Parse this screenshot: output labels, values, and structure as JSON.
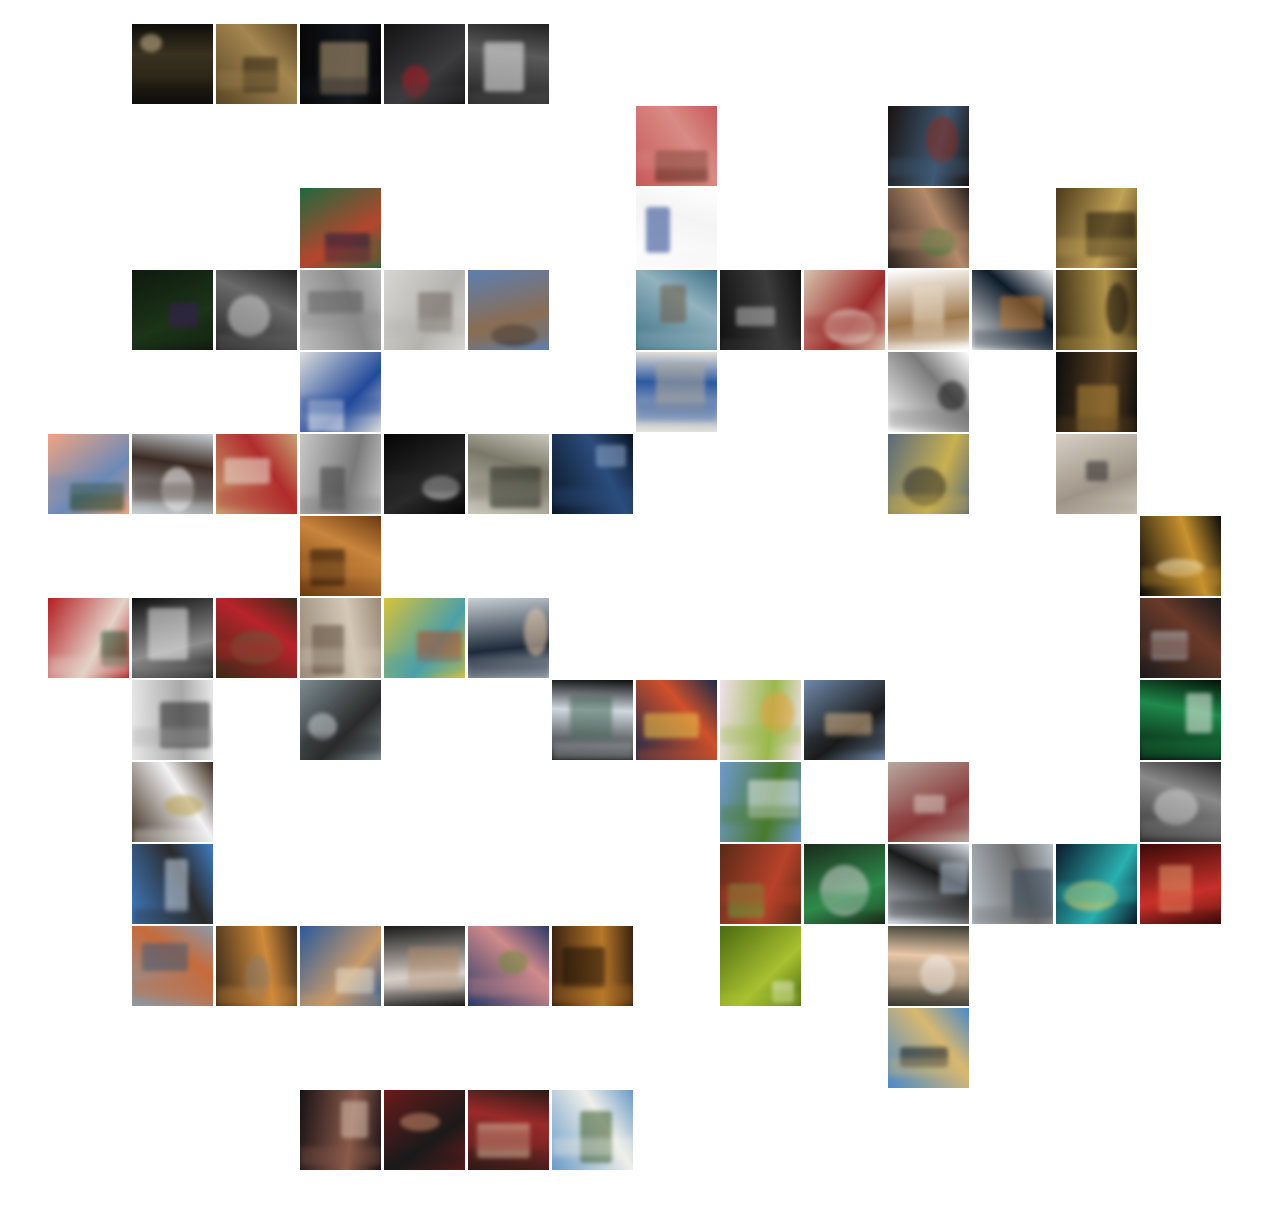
{
  "collage": {
    "grid": {
      "columns": 14,
      "rows": 14
    },
    "tiles": [
      {
        "id": "cave-lights",
        "col": 1,
        "row": 0,
        "colors": [
          "#0e0d0a",
          "#3b3220",
          "#c8b890"
        ]
      },
      {
        "id": "cave-interior",
        "col": 2,
        "row": 0,
        "colors": [
          "#5a4524",
          "#a38650",
          "#2c2212"
        ]
      },
      {
        "id": "dark-stage",
        "col": 3,
        "row": 0,
        "colors": [
          "#060607",
          "#17181f",
          "#b9a27a"
        ]
      },
      {
        "id": "car-wheel",
        "col": 4,
        "row": 0,
        "colors": [
          "#121212",
          "#3c3c3f",
          "#b01a22"
        ]
      },
      {
        "id": "white-sports-car",
        "col": 5,
        "row": 0,
        "colors": [
          "#202020",
          "#5a5a5a",
          "#efefef"
        ]
      },
      {
        "id": "red-door",
        "col": 7,
        "row": 1,
        "colors": [
          "#c65a5a",
          "#d98b85",
          "#5b2a1b"
        ]
      },
      {
        "id": "person-jeans",
        "col": 10,
        "row": 1,
        "colors": [
          "#1a1312",
          "#3e5a74",
          "#8a2a1e"
        ]
      },
      {
        "id": "painted-faces",
        "col": 3,
        "row": 2,
        "colors": [
          "#1f6a3e",
          "#b4462e",
          "#1c1a3e"
        ]
      },
      {
        "id": "white-screen",
        "col": 7,
        "row": 2,
        "colors": [
          "#ffffff",
          "#f4f4f4",
          "#1d3e8b"
        ]
      },
      {
        "id": "group-friends",
        "col": 10,
        "row": 2,
        "colors": [
          "#2a2220",
          "#b48a6a",
          "#3f7a3a"
        ]
      },
      {
        "id": "bottle-shelves",
        "col": 12,
        "row": 2,
        "colors": [
          "#4b3a1c",
          "#c2a257",
          "#1b1408"
        ]
      },
      {
        "id": "purple-flowers",
        "col": 1,
        "row": 3,
        "colors": [
          "#0e1a0e",
          "#1c3418",
          "#3a1c5a"
        ]
      },
      {
        "id": "bw-flowers",
        "col": 2,
        "row": 3,
        "colors": [
          "#222222",
          "#6a6a6a",
          "#cfcfcf"
        ]
      },
      {
        "id": "thatched-huts",
        "col": 3,
        "row": 3,
        "colors": [
          "#bdbdbd",
          "#8a8a8a",
          "#5e5e5e"
        ]
      },
      {
        "id": "foggy-pier",
        "col": 4,
        "row": 3,
        "colors": [
          "#d6d6d4",
          "#b5b3ae",
          "#6e675e"
        ]
      },
      {
        "id": "stone-window",
        "col": 5,
        "row": 3,
        "colors": [
          "#5c7fb0",
          "#8a6d52",
          "#2b2019"
        ]
      },
      {
        "id": "fisheye-sea",
        "col": 7,
        "row": 3,
        "colors": [
          "#3d6f84",
          "#92b3bf",
          "#6e5a44"
        ]
      },
      {
        "id": "speaker-dials",
        "col": 8,
        "row": 3,
        "colors": [
          "#101010",
          "#3c3c3c",
          "#b8b8b8"
        ]
      },
      {
        "id": "two-men",
        "col": 9,
        "row": 3,
        "colors": [
          "#d6c4ae",
          "#9e2a2a",
          "#e3d9cc"
        ]
      },
      {
        "id": "dog-sketch",
        "col": 10,
        "row": 3,
        "colors": [
          "#ffffff",
          "#a07a4e",
          "#e9dcc8"
        ]
      },
      {
        "id": "framed-night",
        "col": 11,
        "row": 3,
        "colors": [
          "#f3f3f3",
          "#0d1b2a",
          "#c47a2e"
        ]
      },
      {
        "id": "bottle-shelves-2",
        "col": 12,
        "row": 3,
        "colors": [
          "#3b2e16",
          "#b09349",
          "#15100a"
        ]
      },
      {
        "id": "quick-sign",
        "col": 3,
        "row": 4,
        "colors": [
          "#dcdcdc",
          "#224a9a",
          "#f5f5f5"
        ]
      },
      {
        "id": "van-lettering",
        "col": 7,
        "row": 4,
        "colors": [
          "#e8e4da",
          "#2d59a0",
          "#b0a99c"
        ]
      },
      {
        "id": "old-man-drawing",
        "col": 10,
        "row": 4,
        "colors": [
          "#ffffff",
          "#7a7a7a",
          "#1a1a1a"
        ]
      },
      {
        "id": "night-street",
        "col": 12,
        "row": 4,
        "colors": [
          "#0d0d0d",
          "#5a4020",
          "#b48a3a"
        ]
      },
      {
        "id": "sunset-tree",
        "col": 0,
        "row": 5,
        "colors": [
          "#f0a482",
          "#6a8ab8",
          "#27421a"
        ]
      },
      {
        "id": "woman-car",
        "col": 1,
        "row": 5,
        "colors": [
          "#c9d1d6",
          "#3a2a22",
          "#f2f2f2"
        ]
      },
      {
        "id": "girl-red-hat",
        "col": 2,
        "row": 5,
        "colors": [
          "#c7a272",
          "#b12c2c",
          "#eee6d8"
        ]
      },
      {
        "id": "old-village",
        "col": 3,
        "row": 5,
        "colors": [
          "#c8c8c8",
          "#7a7a7a",
          "#404040"
        ]
      },
      {
        "id": "dark-tunnel",
        "col": 4,
        "row": 5,
        "colors": [
          "#050505",
          "#2a2a2a",
          "#d8d8d8"
        ]
      },
      {
        "id": "old-photo-field",
        "col": 5,
        "row": 5,
        "colors": [
          "#cac8bc",
          "#7a7868",
          "#2a2a24"
        ]
      },
      {
        "id": "blue-glass",
        "col": 6,
        "row": 5,
        "colors": [
          "#0a1524",
          "#2b4d7e",
          "#8fa7c8"
        ]
      },
      {
        "id": "street-kids",
        "col": 10,
        "row": 5,
        "colors": [
          "#5a6a7a",
          "#c8b050",
          "#2b2b2b"
        ]
      },
      {
        "id": "hand-bird",
        "col": 12,
        "row": 5,
        "colors": [
          "#d8d0c4",
          "#9e9488",
          "#2a2a2a"
        ]
      },
      {
        "id": "wooden-tunnel",
        "col": 3,
        "row": 6,
        "colors": [
          "#6a3a12",
          "#c9853c",
          "#281404"
        ]
      },
      {
        "id": "guitar",
        "col": 13,
        "row": 6,
        "colors": [
          "#0a0a0a",
          "#c8922e",
          "#f2e4bc"
        ]
      },
      {
        "id": "red-packages",
        "col": 0,
        "row": 7,
        "colors": [
          "#b41e22",
          "#e4d2c8",
          "#2a4a2a"
        ]
      },
      {
        "id": "bw-couple",
        "col": 1,
        "row": 7,
        "colors": [
          "#0e0e0e",
          "#8e8e8e",
          "#eaeaea"
        ]
      },
      {
        "id": "stuffed-toy",
        "col": 2,
        "row": 7,
        "colors": [
          "#3a2a18",
          "#b8242a",
          "#6a5a3a"
        ]
      },
      {
        "id": "ruins",
        "col": 3,
        "row": 7,
        "colors": [
          "#9a8a78",
          "#d4c8b6",
          "#5a4a3a"
        ]
      },
      {
        "id": "colorful-boxes",
        "col": 4,
        "row": 7,
        "colors": [
          "#d8c23a",
          "#4aa0a8",
          "#b04a2a"
        ]
      },
      {
        "id": "man-portrait",
        "col": 5,
        "row": 7,
        "colors": [
          "#c8d0d6",
          "#1e2a3a",
          "#e8c8a8"
        ]
      },
      {
        "id": "band-player",
        "col": 13,
        "row": 7,
        "colors": [
          "#1a1a1a",
          "#6a3a2a",
          "#b8b8c0"
        ]
      },
      {
        "id": "street-sign",
        "col": 1,
        "row": 8,
        "colors": [
          "#e8e8e8",
          "#a8a8a8",
          "#222222"
        ]
      },
      {
        "id": "boat-water",
        "col": 3,
        "row": 8,
        "colors": [
          "#7c8c92",
          "#2a2a2a",
          "#c8d0d2"
        ]
      },
      {
        "id": "lattice-glass",
        "col": 6,
        "row": 8,
        "colors": [
          "#0e0e0e",
          "#cfd8e0",
          "#4a6a5a"
        ]
      },
      {
        "id": "times-square",
        "col": 7,
        "row": 8,
        "colors": [
          "#1a2a4a",
          "#d0502a",
          "#e8c84a"
        ]
      },
      {
        "id": "bento-box",
        "col": 8,
        "row": 8,
        "colors": [
          "#f0e0ea",
          "#9ab84a",
          "#e8a040"
        ]
      },
      {
        "id": "bridge-dusk",
        "col": 9,
        "row": 8,
        "colors": [
          "#6f89ab",
          "#1a1a1a",
          "#d8b68a"
        ]
      },
      {
        "id": "green-cups",
        "col": 13,
        "row": 8,
        "colors": [
          "#041208",
          "#1e8a4a",
          "#e8f0e8"
        ]
      },
      {
        "id": "note-candles",
        "col": 1,
        "row": 9,
        "colors": [
          "#3a2a1a",
          "#f2f2f4",
          "#b8a048"
        ]
      },
      {
        "id": "waterfall-hill",
        "col": 8,
        "row": 9,
        "colors": [
          "#6e9ad0",
          "#4a7a2a",
          "#e8eef2"
        ]
      },
      {
        "id": "pebbles",
        "col": 10,
        "row": 9,
        "colors": [
          "#b8a8a0",
          "#8a3a3a",
          "#dcd2c8"
        ]
      },
      {
        "id": "concert-crowd",
        "col": 13,
        "row": 9,
        "colors": [
          "#2a2a2a",
          "#8a8a8a",
          "#d0d0d0"
        ]
      },
      {
        "id": "tower-block",
        "col": 1,
        "row": 10,
        "colors": [
          "#3f7cc4",
          "#2a2a2a",
          "#c8d8ea"
        ]
      },
      {
        "id": "bento-food",
        "col": 8,
        "row": 10,
        "colors": [
          "#5a2a18",
          "#b8422a",
          "#6aa03a"
        ]
      },
      {
        "id": "doorway-man",
        "col": 9,
        "row": 10,
        "colors": [
          "#1a2a1a",
          "#2e8a4a",
          "#d0d0d0"
        ]
      },
      {
        "id": "seagull-sky",
        "col": 10,
        "row": 10,
        "colors": [
          "#d6dee6",
          "#1a1a1a",
          "#a8b8c8"
        ]
      },
      {
        "id": "harbor-city",
        "col": 11,
        "row": 10,
        "colors": [
          "#b8c2ca",
          "#6a6a6a",
          "#3a4a5a"
        ]
      },
      {
        "id": "comic-panels",
        "col": 12,
        "row": 10,
        "colors": [
          "#0a1a2a",
          "#2ab0b0",
          "#e8d060"
        ]
      },
      {
        "id": "red-dancers",
        "col": 13,
        "row": 10,
        "colors": [
          "#3a0a08",
          "#c8302a",
          "#e89a6a"
        ]
      },
      {
        "id": "graffiti-wall",
        "col": 1,
        "row": 11,
        "colors": [
          "#8a9aa8",
          "#c86a3a",
          "#3a5a7a"
        ]
      },
      {
        "id": "stormy-church",
        "col": 2,
        "row": 11,
        "colors": [
          "#3a2a1a",
          "#d08a3a",
          "#8a7a6a"
        ]
      },
      {
        "id": "coastal-town",
        "col": 3,
        "row": 11,
        "colors": [
          "#2a5a9a",
          "#c89a6a",
          "#e8e0d0"
        ]
      },
      {
        "id": "old-woman",
        "col": 4,
        "row": 11,
        "colors": [
          "#1a1a1a",
          "#d8d0c8",
          "#b08a6a"
        ]
      },
      {
        "id": "flower-field",
        "col": 5,
        "row": 11,
        "colors": [
          "#2a3a6a",
          "#d08a8a",
          "#6a8a3a"
        ]
      },
      {
        "id": "old-alley",
        "col": 6,
        "row": 11,
        "colors": [
          "#3a2210",
          "#b8782a",
          "#1a0e06"
        ]
      },
      {
        "id": "dew-drop",
        "col": 8,
        "row": 11,
        "colors": [
          "#4a6a10",
          "#a8c030",
          "#e8f0c8"
        ]
      },
      {
        "id": "father-baby",
        "col": 10,
        "row": 11,
        "colors": [
          "#3a3a30",
          "#e8c8a8",
          "#f2f2f2"
        ]
      },
      {
        "id": "city-skyline",
        "col": 10,
        "row": 12,
        "colors": [
          "#4a8ac8",
          "#d8b870",
          "#0e1a2a"
        ]
      },
      {
        "id": "party-crowd",
        "col": 3,
        "row": 13,
        "colors": [
          "#1a1216",
          "#8a5a4a",
          "#d8c0b0"
        ]
      },
      {
        "id": "band-red-room",
        "col": 4,
        "row": 13,
        "colors": [
          "#6a1a1a",
          "#1a1a1a",
          "#c88a6a"
        ]
      },
      {
        "id": "party-people",
        "col": 5,
        "row": 13,
        "colors": [
          "#2a1a16",
          "#9a2a2a",
          "#d8b89a"
        ]
      },
      {
        "id": "palm-terrace",
        "col": 6,
        "row": 13,
        "colors": [
          "#6a9ac8",
          "#f0f0ea",
          "#3a5a2a"
        ]
      }
    ]
  }
}
